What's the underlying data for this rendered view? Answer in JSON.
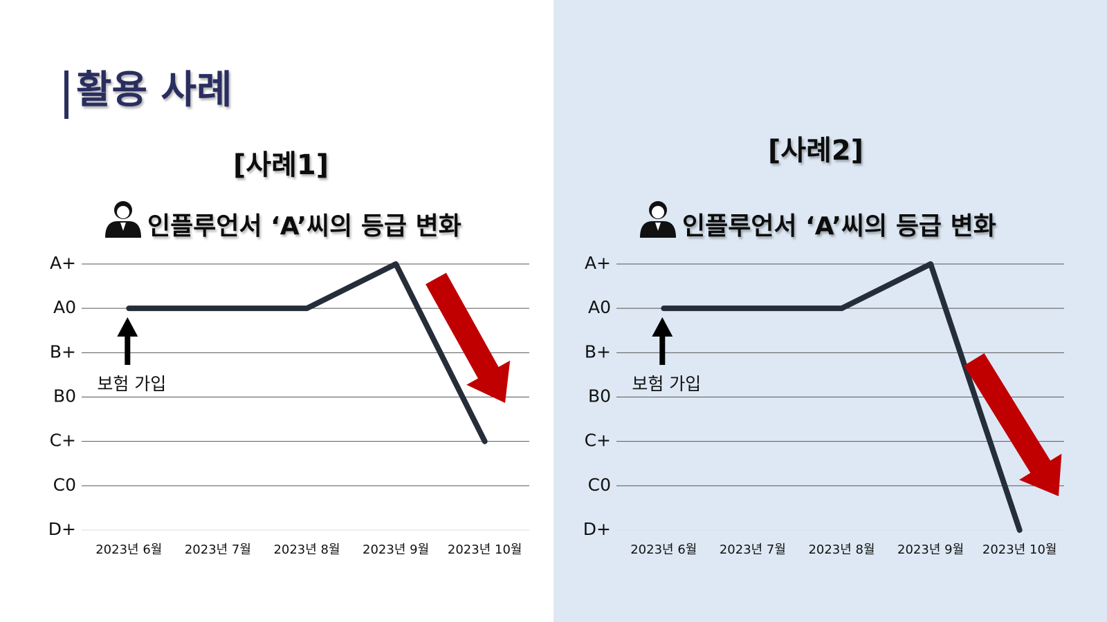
{
  "title": "활용 사례",
  "chart_data": [
    {
      "type": "line",
      "title": "[사례1]",
      "subtitle": "인플루언서 ‘A’씨의 등급 변화",
      "categories": [
        "2023년 6월",
        "2023년 7월",
        "2023년 8월",
        "2023년 9월",
        "2023년 10월"
      ],
      "values": [
        6,
        6,
        6,
        7,
        3
      ],
      "color": "#252d3a",
      "ylim": [
        1,
        7
      ],
      "yticks": [
        {
          "value": 7,
          "label": "A+"
        },
        {
          "value": 6,
          "label": "A0"
        },
        {
          "value": 5,
          "label": "B+"
        },
        {
          "value": 4,
          "label": "B0"
        },
        {
          "value": 3,
          "label": "C+"
        },
        {
          "value": 2,
          "label": "C0"
        },
        {
          "value": 1,
          "label": "D+"
        }
      ],
      "grid": true,
      "annotation": "보험 가입"
    },
    {
      "type": "line",
      "title": "[사례2]",
      "subtitle": "인플루언서 ‘A’씨의 등급 변화",
      "categories": [
        "2023년 6월",
        "2023년 7월",
        "2023년 8월",
        "2023년 9월",
        "2023년 10월"
      ],
      "values": [
        6,
        6,
        6,
        7,
        1
      ],
      "color": "#252d3a",
      "ylim": [
        1,
        7
      ],
      "yticks": [
        {
          "value": 7,
          "label": "A+"
        },
        {
          "value": 6,
          "label": "A0"
        },
        {
          "value": 5,
          "label": "B+"
        },
        {
          "value": 4,
          "label": "B0"
        },
        {
          "value": 3,
          "label": "C+"
        },
        {
          "value": 2,
          "label": "C0"
        },
        {
          "value": 1,
          "label": "D+"
        }
      ],
      "grid": true,
      "annotation": "보험 가입"
    }
  ]
}
